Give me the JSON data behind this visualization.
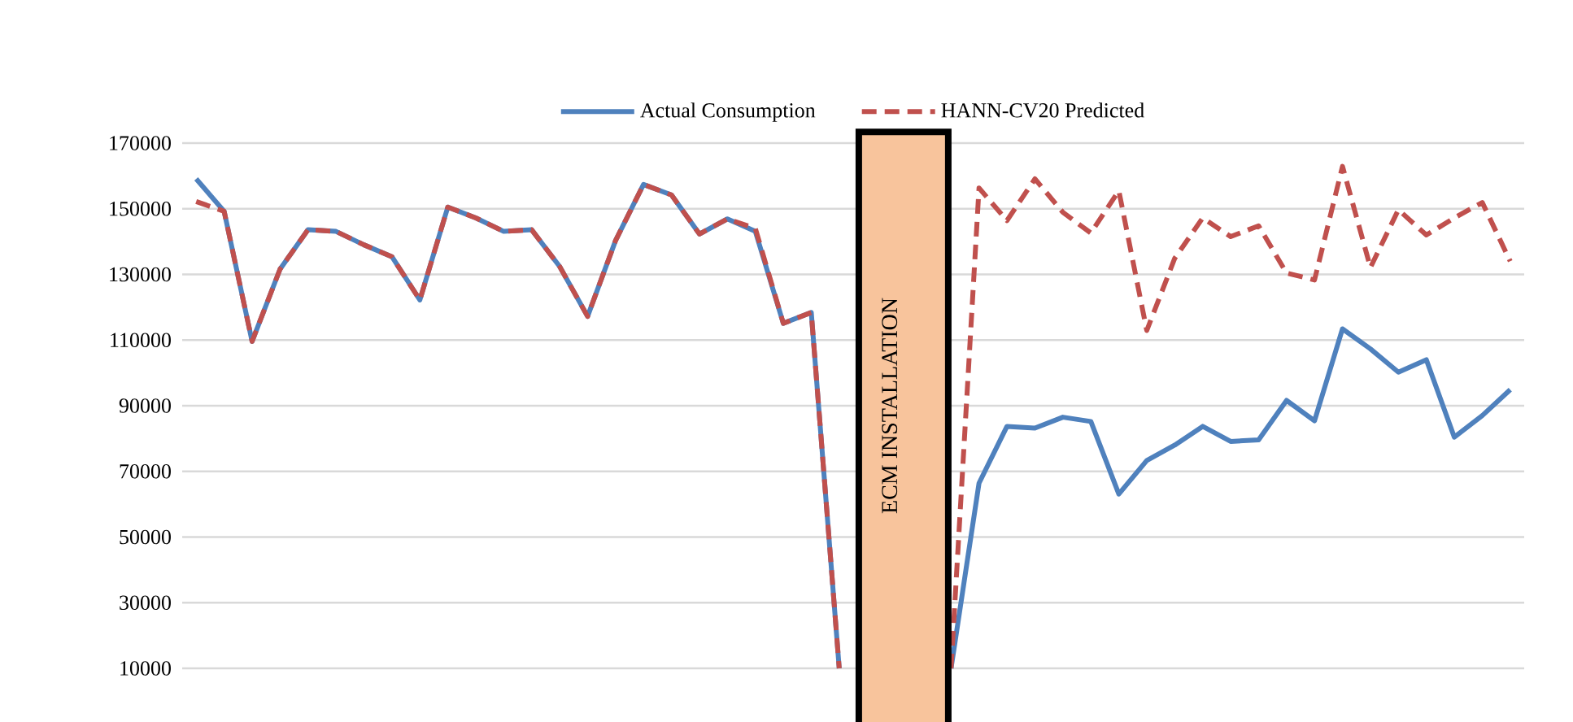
{
  "chart_data": {
    "type": "line",
    "categories": [
      null,
      null,
      null,
      null,
      null,
      null,
      null,
      null,
      null,
      null,
      null,
      null,
      null,
      null,
      null,
      null,
      null,
      null,
      null,
      null,
      null,
      null,
      null,
      null,
      null,
      null,
      null,
      null,
      null,
      null,
      null,
      null,
      null,
      null,
      null,
      null,
      null,
      null,
      null,
      null,
      null,
      null,
      null,
      null,
      null,
      null,
      null,
      null
    ],
    "series": [
      {
        "name": "Actual Consumption",
        "color": "#4f81bd",
        "line_style": "solid",
        "values": [
          159100,
          149200,
          109600,
          131600,
          143600,
          143100,
          139000,
          135400,
          122200,
          150500,
          147200,
          143100,
          143600,
          132400,
          117200,
          140300,
          157400,
          154200,
          142300,
          146900,
          143100,
          115100,
          118400,
          10000,
          null,
          null,
          null,
          10000,
          66400,
          83700,
          83200,
          86500,
          85200,
          63100,
          73300,
          78000,
          83700,
          79100,
          79600,
          91600,
          85400,
          113400,
          107300,
          100200,
          104000,
          80400,
          87000,
          94900
        ]
      },
      {
        "name": "HANN-CV20 Predicted",
        "color": "#c0504d",
        "line_style": "dashed",
        "values": [
          152200,
          149200,
          109600,
          131600,
          143600,
          143100,
          139000,
          135400,
          122200,
          150500,
          147200,
          143100,
          143600,
          132400,
          117200,
          140300,
          157400,
          154200,
          142300,
          146900,
          144000,
          115100,
          118400,
          10000,
          null,
          null,
          null,
          10000,
          156300,
          146400,
          159100,
          148900,
          142600,
          155500,
          112900,
          134900,
          147200,
          141500,
          144800,
          130400,
          128300,
          162900,
          132100,
          149700,
          142000,
          147200,
          151900,
          134000
        ]
      }
    ],
    "ylim": [
      10000,
      170000
    ],
    "yticks": [
      10000,
      30000,
      50000,
      70000,
      90000,
      110000,
      130000,
      150000,
      170000
    ],
    "grid": "y",
    "legend": "top",
    "tick_labels": "y",
    "marker": "none",
    "annotations": [
      "ECM  INSTALLATION"
    ]
  }
}
